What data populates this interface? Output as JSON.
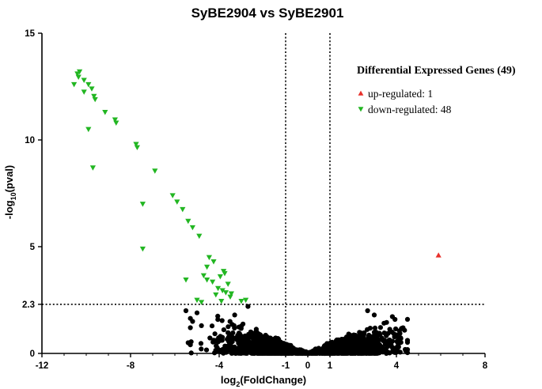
{
  "chart_data": {
    "type": "scatter",
    "title": "SyBE2904 vs SyBE2901",
    "xlabel_main": "log",
    "xlabel_sub": "2",
    "xlabel_rest": "(FoldChange)",
    "ylabel_main": "-log",
    "ylabel_sub": "10",
    "ylabel_rest": "(pval)",
    "xlim": [
      -12,
      8
    ],
    "ylim": [
      0,
      15
    ],
    "x_ticks": [
      -12,
      -8,
      -4,
      -1,
      0,
      1,
      4,
      8
    ],
    "x_tick_labels": [
      "-12",
      "-8",
      "-4",
      "-1",
      "0",
      "1",
      "4",
      "8"
    ],
    "y_ticks": [
      0,
      2.3,
      5,
      10,
      15
    ],
    "y_tick_labels": [
      "0",
      "2.3",
      "5",
      "10",
      "15"
    ],
    "thresholds": {
      "x": [
        -1,
        1
      ],
      "y": 2.3
    },
    "legend": {
      "title": "Differential Expressed Genes (49)",
      "position": "top-right",
      "items": [
        {
          "label": "up-regulated: 1",
          "color": "#e8312b",
          "marker": "triangle-up"
        },
        {
          "label": "down-regulated: 48",
          "color": "#22b622",
          "marker": "triangle-down"
        }
      ]
    },
    "colors": {
      "up": "#e8312b",
      "down": "#22b622",
      "ns": "#000000"
    },
    "series": [
      {
        "name": "up-regulated",
        "marker": "triangle-up",
        "color": "#e8312b",
        "points": [
          [
            5.9,
            4.6
          ]
        ]
      },
      {
        "name": "down-regulated",
        "marker": "triangle-down",
        "color": "#22b622",
        "points": [
          [
            -10.4,
            13.1
          ],
          [
            -10.35,
            12.95
          ],
          [
            -10.3,
            13.2
          ],
          [
            -10.1,
            12.8
          ],
          [
            -9.9,
            12.6
          ],
          [
            -9.75,
            12.4
          ],
          [
            -9.65,
            12.05
          ],
          [
            -9.6,
            11.9
          ],
          [
            -10.55,
            12.6
          ],
          [
            -10.1,
            12.25
          ],
          [
            -9.15,
            11.3
          ],
          [
            -8.7,
            10.95
          ],
          [
            -8.65,
            10.8
          ],
          [
            -9.9,
            10.5
          ],
          [
            -7.75,
            9.8
          ],
          [
            -7.7,
            9.65
          ],
          [
            -9.7,
            8.7
          ],
          [
            -6.9,
            8.55
          ],
          [
            -6.1,
            7.4
          ],
          [
            -5.9,
            7.1
          ],
          [
            -5.65,
            6.75
          ],
          [
            -7.45,
            7.0
          ],
          [
            -5.4,
            6.2
          ],
          [
            -5.2,
            5.9
          ],
          [
            -4.9,
            5.5
          ],
          [
            -7.45,
            4.9
          ],
          [
            -4.45,
            4.5
          ],
          [
            -4.25,
            4.3
          ],
          [
            -4.55,
            4.05
          ],
          [
            -3.8,
            3.85
          ],
          [
            -3.75,
            3.75
          ],
          [
            -5.5,
            3.45
          ],
          [
            -4.7,
            3.65
          ],
          [
            -3.95,
            3.6
          ],
          [
            -4.55,
            3.45
          ],
          [
            -4.3,
            3.35
          ],
          [
            -3.6,
            3.25
          ],
          [
            -4.05,
            3.05
          ],
          [
            -3.85,
            2.95
          ],
          [
            -3.7,
            2.85
          ],
          [
            -3.45,
            2.8
          ],
          [
            -3.5,
            2.65
          ],
          [
            -4.15,
            2.75
          ],
          [
            -5.0,
            2.5
          ],
          [
            -4.8,
            2.4
          ],
          [
            -3.9,
            2.45
          ],
          [
            -3.0,
            2.45
          ],
          [
            -2.8,
            2.5
          ]
        ]
      }
    ]
  }
}
